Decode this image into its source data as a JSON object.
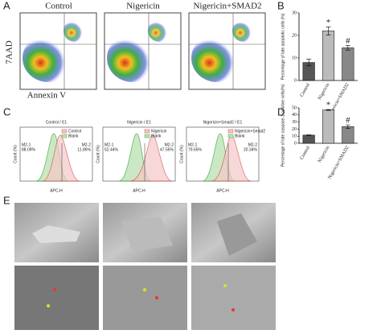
{
  "panels": {
    "a": {
      "label": "A",
      "titles": [
        "Control",
        "Nigericin",
        "Nigericin+SMAD2"
      ],
      "y_label": "7AAD",
      "x_label": "Annexin V"
    },
    "c": {
      "label": "C",
      "titles": [
        "Control / E1",
        "Nigericin / E1",
        "Nigericin+Smad2 / E1"
      ],
      "legends": [
        [
          "Control",
          "Blank"
        ],
        [
          "Nigericin",
          "Blank"
        ],
        [
          "Nigericin+Smad2",
          "Blank"
        ]
      ],
      "gates": [
        [
          "M2-1",
          "M2-2"
        ],
        [
          "M2-1",
          "M2-2"
        ],
        [
          "M2-1",
          "M2-2"
        ]
      ],
      "percents": [
        [
          "88.09%",
          "11.86%"
        ],
        [
          "52.44%",
          "47.55%"
        ],
        [
          "79.65%",
          "20.34%"
        ]
      ],
      "y_label": "Count (%)",
      "x_label": "APC-H"
    },
    "e": {
      "label": "E"
    }
  },
  "chart_data": [
    {
      "type": "bar",
      "label": "B",
      "y_label": "Percentage of late apoptotic cells (%)",
      "categories": [
        "Control",
        "Nigericin",
        "Nigericin+SMAD2"
      ],
      "values": [
        8,
        22,
        14.5
      ],
      "errors": [
        1.5,
        1.8,
        1
      ],
      "colors": [
        "#555555",
        "#bbbbbb",
        "#888888"
      ],
      "ylim": [
        0,
        30
      ],
      "yticks": [
        0,
        10,
        20,
        30
      ],
      "annotations": [
        {
          "text": "*",
          "category": "Nigericin"
        },
        {
          "text": "#",
          "category": "Nigericin+SMAD2"
        }
      ]
    },
    {
      "type": "bar",
      "label": "D",
      "y_label": "Percentage of late caspase-1 positive cells(%)",
      "categories": [
        "Control",
        "Nigericin",
        "Nigericin+SMAD2"
      ],
      "values": [
        11.5,
        47,
        23.5
      ],
      "errors": [
        0.4,
        0.6,
        2.5
      ],
      "colors": [
        "#555555",
        "#bbbbbb",
        "#888888"
      ],
      "ylim": [
        0,
        50
      ],
      "yticks": [
        0,
        10,
        20,
        30,
        40,
        50
      ],
      "annotations": [
        {
          "text": "*",
          "category": "Nigericin"
        },
        {
          "text": "#",
          "category": "Nigericin+SMAD2"
        }
      ]
    }
  ]
}
